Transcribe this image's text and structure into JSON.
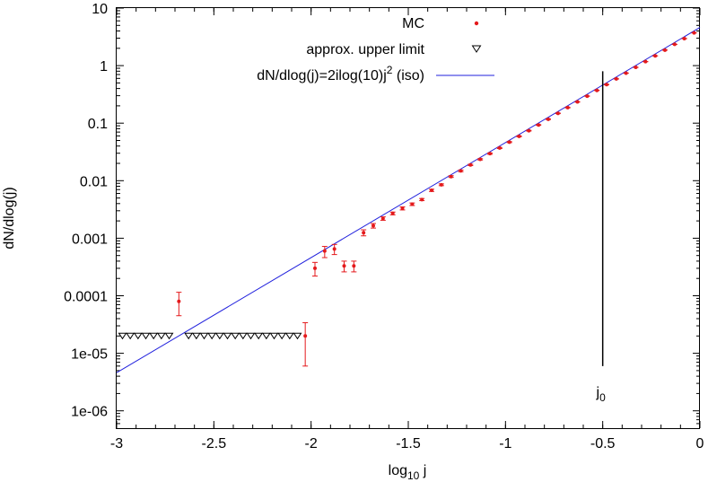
{
  "chart_data": {
    "type": "scatter",
    "xlabel_main": "log",
    "xlabel_sub": "10",
    "xlabel_tail": " j",
    "ylabel": "dN/dlog(j)",
    "xlim": [
      -3,
      0
    ],
    "ylim": [
      5e-07,
      10
    ],
    "yscale": "log",
    "grid": false,
    "legend_position": "top-right",
    "x_ticks": [
      -3,
      -2.5,
      -2,
      -1.5,
      -1,
      -0.5,
      0
    ],
    "x_tick_labels": [
      "-3",
      "-2.5",
      "-2",
      "-1.5",
      "-1",
      "-0.5",
      "0"
    ],
    "y_ticks": [
      1e-06,
      1e-05,
      0.0001,
      0.001,
      0.01,
      0.1,
      1,
      10
    ],
    "y_tick_labels": [
      "1e-06",
      "1e-05",
      "0.0001",
      "0.001",
      "0.01",
      "0.1",
      "1",
      "10"
    ],
    "legend": {
      "mc": "MC",
      "upper": "approx. upper limit",
      "line_main": "dN/dlog(j)=2ilog(10)j",
      "line_sup": "2",
      "line_tail": " (iso)"
    },
    "colors": {
      "mc": "#e41a1c",
      "line": "#2222dd",
      "upper": "#000000",
      "marker": "#000000"
    },
    "annotation": {
      "main": "j",
      "sub": "0",
      "x": -0.5,
      "ytop": 0.8,
      "ybottom": 6e-06
    },
    "series": [
      {
        "kind": "line",
        "formula": "2*ln(10)*j^2",
        "x": [
          -3,
          0
        ],
        "y": [
          4.6e-06,
          4.6
        ]
      },
      {
        "kind": "points",
        "points": [
          {
            "x": -2.68,
            "y": 8e-05,
            "lo": 4.5e-05,
            "hi": 0.000115
          },
          {
            "x": -2.03,
            "y": 2e-05,
            "lo": 6e-06,
            "hi": 3.4e-05
          },
          {
            "x": -1.98,
            "y": 0.0003,
            "lo": 0.00022,
            "hi": 0.00038
          },
          {
            "x": -1.93,
            "y": 0.0006,
            "lo": 0.00046,
            "hi": 0.00072
          },
          {
            "x": -1.88,
            "y": 0.00065,
            "lo": 0.00052,
            "hi": 0.00078
          },
          {
            "x": -1.83,
            "y": 0.00033,
            "lo": 0.00026,
            "hi": 0.0004
          },
          {
            "x": -1.78,
            "y": 0.00033,
            "lo": 0.00026,
            "hi": 0.0004
          },
          {
            "x": -1.73,
            "y": 0.00125,
            "lo": 0.0011,
            "hi": 0.0014
          },
          {
            "x": -1.68,
            "y": 0.00165,
            "lo": 0.0015,
            "hi": 0.0018
          },
          {
            "x": -1.63,
            "y": 0.0022,
            "lo": 0.00205,
            "hi": 0.00235
          },
          {
            "x": -1.58,
            "y": 0.0027,
            "lo": 0.00255,
            "hi": 0.00285
          },
          {
            "x": -1.53,
            "y": 0.0033,
            "lo": 0.0031,
            "hi": 0.0035
          },
          {
            "x": -1.48,
            "y": 0.0039,
            "lo": 0.0037,
            "hi": 0.0041
          },
          {
            "x": -1.43,
            "y": 0.0047,
            "lo": 0.0045,
            "hi": 0.0049
          },
          {
            "x": -1.38,
            "y": 0.0068,
            "lo": 0.0065,
            "hi": 0.0071
          },
          {
            "x": -1.33,
            "y": 0.0085,
            "lo": 0.0082,
            "hi": 0.0088
          },
          {
            "x": -1.28,
            "y": 0.0118,
            "lo": 0.0114,
            "hi": 0.0122
          },
          {
            "x": -1.23,
            "y": 0.0148,
            "lo": 0.0143,
            "hi": 0.0153
          },
          {
            "x": -1.18,
            "y": 0.0188,
            "lo": 0.0183,
            "hi": 0.0193
          },
          {
            "x": -1.13,
            "y": 0.0235,
            "lo": 0.0229,
            "hi": 0.0241
          },
          {
            "x": -1.08,
            "y": 0.0295,
            "lo": 0.0288,
            "hi": 0.0302
          },
          {
            "x": -1.03,
            "y": 0.037,
            "lo": 0.0362,
            "hi": 0.0378
          },
          {
            "x": -0.98,
            "y": 0.0468,
            "lo": 0.0459,
            "hi": 0.0477
          },
          {
            "x": -0.93,
            "y": 0.059,
            "lo": 0.058,
            "hi": 0.06
          },
          {
            "x": -0.88,
            "y": 0.074,
            "lo": 0.0729,
            "hi": 0.0751
          },
          {
            "x": -0.83,
            "y": 0.093,
            "lo": 0.0918,
            "hi": 0.0942
          },
          {
            "x": -0.78,
            "y": 0.117,
            "lo": 0.1157,
            "hi": 0.1183
          },
          {
            "x": -0.73,
            "y": 0.148,
            "lo": 0.1465,
            "hi": 0.1495
          },
          {
            "x": -0.68,
            "y": 0.186,
            "lo": 0.1843,
            "hi": 0.1877
          },
          {
            "x": -0.63,
            "y": 0.234,
            "lo": 0.232,
            "hi": 0.236
          },
          {
            "x": -0.58,
            "y": 0.295,
            "lo": 0.2928,
            "hi": 0.2972
          },
          {
            "x": -0.53,
            "y": 0.371,
            "lo": 0.3685,
            "hi": 0.3735
          },
          {
            "x": -0.48,
            "y": 0.467,
            "lo": 0.4642,
            "hi": 0.4698
          },
          {
            "x": -0.43,
            "y": 0.588,
            "lo": 0.585,
            "hi": 0.591
          },
          {
            "x": -0.38,
            "y": 0.74,
            "lo": 0.7365,
            "hi": 0.7435
          },
          {
            "x": -0.33,
            "y": 0.932,
            "lo": 0.928,
            "hi": 0.936
          },
          {
            "x": -0.28,
            "y": 1.173,
            "lo": 1.168,
            "hi": 1.178
          },
          {
            "x": -0.23,
            "y": 1.477,
            "lo": 1.471,
            "hi": 1.483
          },
          {
            "x": -0.18,
            "y": 1.86,
            "lo": 1.853,
            "hi": 1.867
          },
          {
            "x": -0.13,
            "y": 2.34,
            "lo": 2.332,
            "hi": 2.348
          },
          {
            "x": -0.08,
            "y": 2.95,
            "lo": 2.94,
            "hi": 2.96
          },
          {
            "x": -0.03,
            "y": 3.71,
            "lo": 3.698,
            "hi": 3.722
          }
        ]
      },
      {
        "kind": "upper-limits",
        "y": 2e-05,
        "x": [
          -2.97,
          -2.93,
          -2.89,
          -2.85,
          -2.81,
          -2.77,
          -2.73,
          -2.63,
          -2.59,
          -2.55,
          -2.51,
          -2.47,
          -2.43,
          -2.39,
          -2.35,
          -2.31,
          -2.27,
          -2.23,
          -2.19,
          -2.15,
          -2.11,
          -2.07
        ]
      }
    ]
  }
}
